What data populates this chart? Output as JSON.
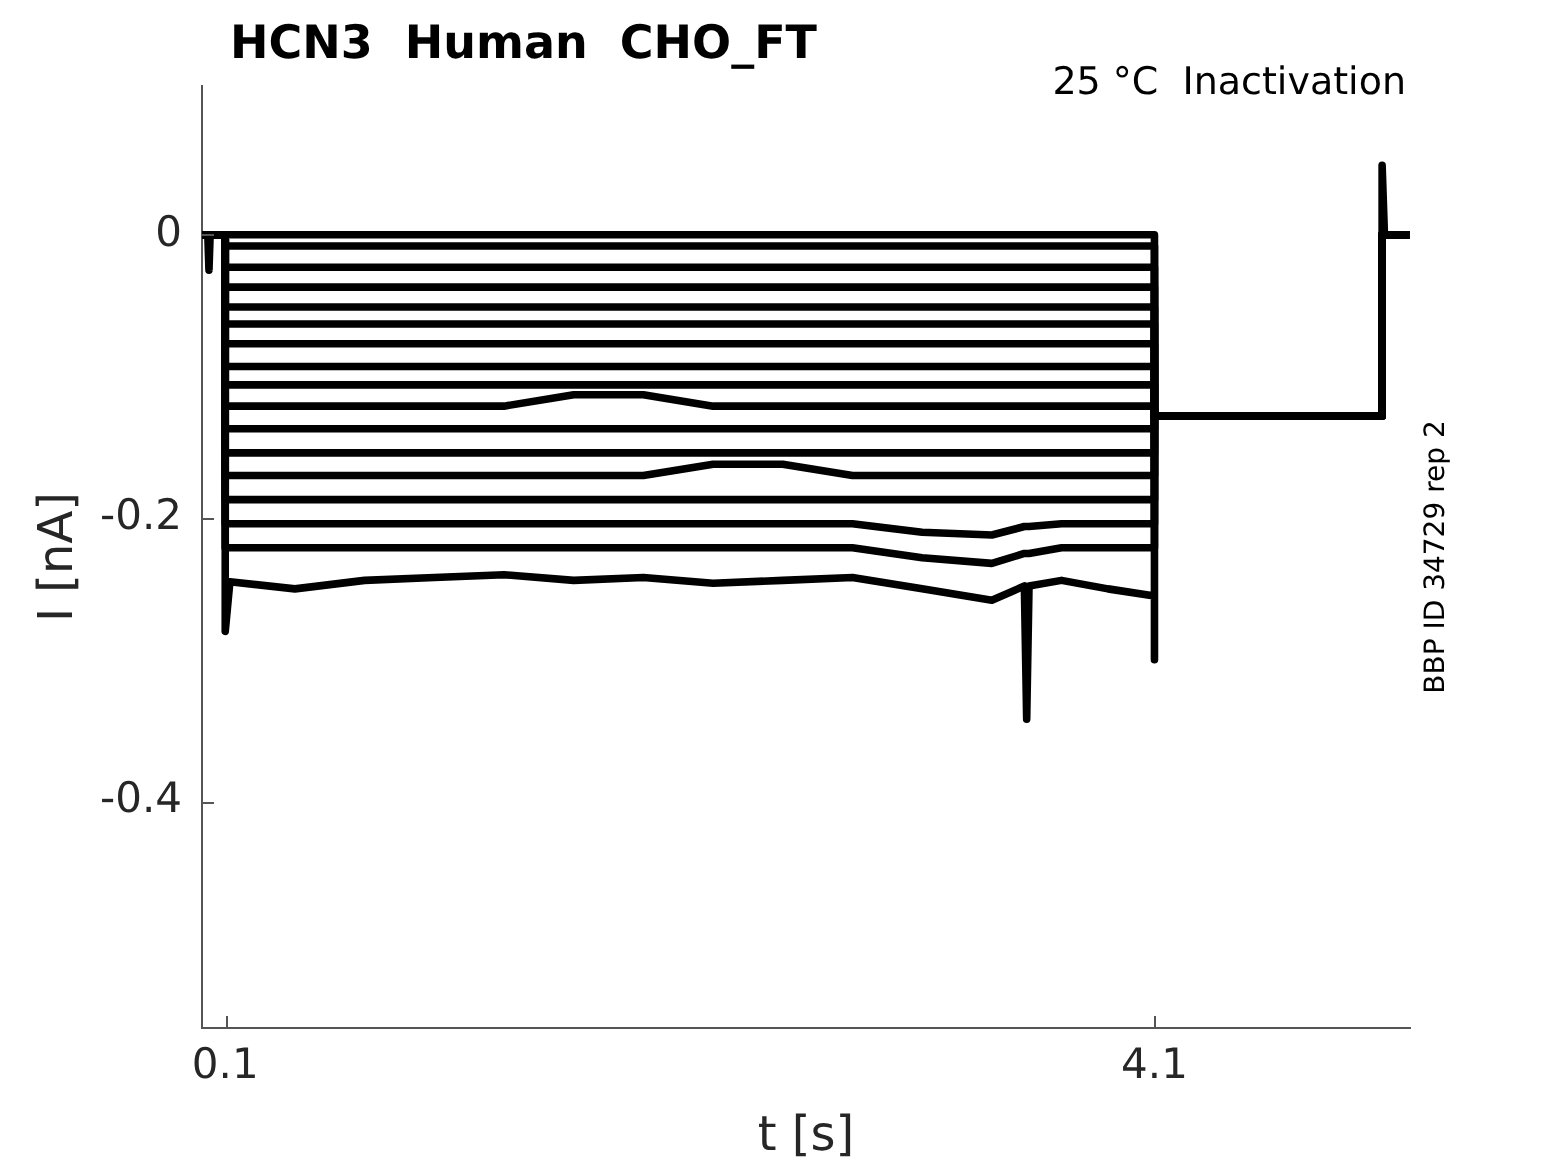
{
  "chart_data": {
    "type": "line",
    "title": "HCN3  Human  CHO_FT",
    "subtitle": "25 °C  Inactivation",
    "xlabel": "t [s]",
    "ylabel": "I [nA]",
    "annotations": [
      "BBP ID 34729 rep 2"
    ],
    "x": [
      0,
      0.025,
      0.03,
      0.035,
      0.1,
      0.1,
      0.12,
      0.4,
      0.7,
      1,
      1.3,
      1.6,
      1.9,
      2.2,
      2.5,
      2.8,
      3.1,
      3.4,
      3.54,
      3.55,
      3.56,
      3.7,
      3.9,
      4.1,
      4.1,
      4.1,
      4.5,
      5.08,
      5.08,
      5.09,
      5.2
    ],
    "series": [
      {
        "color": "#000000",
        "values": [
          0,
          0,
          -0.025,
          0,
          0,
          0,
          0,
          0,
          0,
          0,
          0,
          0,
          0,
          0,
          0,
          0,
          0,
          0,
          0,
          0,
          0,
          0,
          0,
          0,
          0,
          -0.128,
          -0.128,
          -0.128,
          0.049,
          0,
          0
        ]
      },
      {
        "color": "#000000",
        "values": [
          0,
          0,
          0,
          0,
          0,
          -0.008,
          -0.008,
          -0.008,
          -0.008,
          -0.008,
          -0.008,
          -0.008,
          -0.008,
          -0.008,
          -0.008,
          -0.008,
          -0.008,
          -0.008,
          -0.008,
          -0.008,
          -0.008,
          -0.008,
          -0.008,
          -0.008,
          -0.008,
          -0.128,
          -0.128,
          -0.128,
          0,
          0,
          0
        ]
      },
      {
        "color": "#000000",
        "values": [
          0,
          0,
          0,
          0,
          0,
          -0.023,
          -0.023,
          -0.023,
          -0.023,
          -0.023,
          -0.023,
          -0.023,
          -0.023,
          -0.023,
          -0.023,
          -0.023,
          -0.023,
          -0.023,
          -0.023,
          -0.023,
          -0.023,
          -0.023,
          -0.023,
          -0.023,
          -0.023,
          -0.128,
          -0.128,
          -0.128,
          0,
          0,
          0
        ]
      },
      {
        "color": "#000000",
        "values": [
          0,
          0,
          0,
          0,
          0,
          -0.037,
          -0.037,
          -0.037,
          -0.037,
          -0.037,
          -0.037,
          -0.037,
          -0.037,
          -0.037,
          -0.037,
          -0.037,
          -0.037,
          -0.037,
          -0.037,
          -0.037,
          -0.037,
          -0.037,
          -0.037,
          -0.037,
          -0.037,
          -0.128,
          -0.128,
          -0.128,
          0,
          0,
          0
        ]
      },
      {
        "color": "#000000",
        "values": [
          0,
          0,
          0,
          0,
          0,
          -0.051,
          -0.051,
          -0.051,
          -0.051,
          -0.051,
          -0.051,
          -0.051,
          -0.051,
          -0.051,
          -0.051,
          -0.051,
          -0.051,
          -0.051,
          -0.051,
          -0.051,
          -0.051,
          -0.051,
          -0.051,
          -0.051,
          -0.051,
          -0.128,
          -0.128,
          -0.128,
          0,
          0,
          0
        ]
      },
      {
        "color": "#000000",
        "values": [
          0,
          0,
          0,
          0,
          0,
          -0.063,
          -0.063,
          -0.063,
          -0.063,
          -0.063,
          -0.063,
          -0.063,
          -0.063,
          -0.063,
          -0.063,
          -0.063,
          -0.063,
          -0.063,
          -0.063,
          -0.063,
          -0.063,
          -0.063,
          -0.063,
          -0.063,
          -0.063,
          -0.128,
          -0.128,
          -0.128,
          0,
          0,
          0
        ]
      },
      {
        "color": "#000000",
        "values": [
          0,
          0,
          0,
          0,
          0,
          -0.077,
          -0.077,
          -0.077,
          -0.077,
          -0.077,
          -0.077,
          -0.077,
          -0.077,
          -0.077,
          -0.077,
          -0.077,
          -0.077,
          -0.077,
          -0.077,
          -0.077,
          -0.077,
          -0.077,
          -0.077,
          -0.077,
          -0.077,
          -0.128,
          -0.128,
          -0.128,
          0,
          0,
          0
        ]
      },
      {
        "color": "#000000",
        "values": [
          0,
          0,
          0,
          0,
          0,
          -0.093,
          -0.093,
          -0.093,
          -0.093,
          -0.093,
          -0.093,
          -0.093,
          -0.093,
          -0.093,
          -0.093,
          -0.093,
          -0.093,
          -0.093,
          -0.093,
          -0.093,
          -0.093,
          -0.093,
          -0.093,
          -0.093,
          -0.093,
          -0.128,
          -0.128,
          -0.128,
          0,
          0,
          0
        ]
      },
      {
        "color": "#000000",
        "values": [
          0,
          0,
          0,
          0,
          0,
          -0.106,
          -0.106,
          -0.106,
          -0.106,
          -0.106,
          -0.106,
          -0.106,
          -0.106,
          -0.106,
          -0.106,
          -0.106,
          -0.106,
          -0.106,
          -0.106,
          -0.106,
          -0.106,
          -0.106,
          -0.106,
          -0.106,
          -0.106,
          -0.128,
          -0.128,
          -0.128,
          0,
          0,
          0
        ]
      },
      {
        "color": "#000000",
        "values": [
          0,
          0,
          0,
          0,
          0,
          -0.121,
          -0.121,
          -0.121,
          -0.121,
          -0.121,
          -0.121,
          -0.113,
          -0.113,
          -0.121,
          -0.121,
          -0.121,
          -0.121,
          -0.121,
          -0.121,
          -0.121,
          -0.121,
          -0.121,
          -0.121,
          -0.121,
          -0.121,
          -0.128,
          -0.128,
          -0.128,
          0,
          0,
          0
        ]
      },
      {
        "color": "#000000",
        "values": [
          0,
          0,
          0,
          0,
          0,
          -0.137,
          -0.137,
          -0.137,
          -0.137,
          -0.137,
          -0.137,
          -0.137,
          -0.137,
          -0.137,
          -0.137,
          -0.137,
          -0.137,
          -0.137,
          -0.137,
          -0.137,
          -0.137,
          -0.137,
          -0.137,
          -0.137,
          -0.137,
          -0.128,
          -0.128,
          -0.128,
          0,
          0,
          0
        ]
      },
      {
        "color": "#000000",
        "values": [
          0,
          0,
          0,
          0,
          0,
          -0.154,
          -0.154,
          -0.154,
          -0.154,
          -0.154,
          -0.154,
          -0.154,
          -0.154,
          -0.154,
          -0.154,
          -0.154,
          -0.154,
          -0.154,
          -0.154,
          -0.154,
          -0.154,
          -0.154,
          -0.154,
          -0.154,
          -0.154,
          -0.128,
          -0.128,
          -0.128,
          0,
          0,
          0
        ]
      },
      {
        "color": "#000000",
        "values": [
          0,
          0,
          0,
          0,
          0,
          -0.17,
          -0.17,
          -0.17,
          -0.17,
          -0.17,
          -0.17,
          -0.17,
          -0.17,
          -0.162,
          -0.162,
          -0.17,
          -0.17,
          -0.17,
          -0.17,
          -0.17,
          -0.17,
          -0.17,
          -0.17,
          -0.17,
          -0.17,
          -0.128,
          -0.128,
          -0.128,
          0,
          0,
          0
        ]
      },
      {
        "color": "#000000",
        "values": [
          0,
          0,
          0,
          0,
          0,
          -0.187,
          -0.187,
          -0.187,
          -0.187,
          -0.187,
          -0.187,
          -0.187,
          -0.187,
          -0.187,
          -0.187,
          -0.187,
          -0.187,
          -0.187,
          -0.187,
          -0.187,
          -0.187,
          -0.187,
          -0.187,
          -0.187,
          -0.187,
          -0.128,
          -0.128,
          -0.128,
          0,
          0,
          0
        ]
      },
      {
        "color": "#000000",
        "values": [
          0,
          0,
          0,
          0,
          0,
          -0.204,
          -0.204,
          -0.204,
          -0.204,
          -0.204,
          -0.204,
          -0.204,
          -0.204,
          -0.204,
          -0.204,
          -0.204,
          -0.21,
          -0.212,
          -0.206,
          -0.206,
          -0.206,
          -0.204,
          -0.204,
          -0.204,
          -0.204,
          -0.128,
          -0.128,
          -0.128,
          0,
          0,
          0
        ]
      },
      {
        "color": "#000000",
        "values": [
          0,
          0,
          0,
          0,
          0,
          -0.221,
          -0.221,
          -0.221,
          -0.221,
          -0.221,
          -0.221,
          -0.221,
          -0.221,
          -0.221,
          -0.221,
          -0.221,
          -0.228,
          -0.232,
          -0.225,
          -0.225,
          -0.225,
          -0.221,
          -0.221,
          -0.221,
          -0.221,
          -0.128,
          -0.128,
          -0.128,
          0,
          0,
          0
        ]
      },
      {
        "color": "#000000",
        "values": [
          0,
          0,
          0,
          0,
          0,
          -0.28,
          -0.245,
          -0.25,
          -0.244,
          -0.242,
          -0.24,
          -0.244,
          -0.242,
          -0.246,
          -0.244,
          -0.242,
          -0.25,
          -0.258,
          -0.248,
          -0.342,
          -0.248,
          -0.244,
          -0.25,
          -0.255,
          -0.3,
          -0.128,
          -0.128,
          -0.128,
          0,
          0,
          0
        ]
      }
    ],
    "xlim": [
      0,
      5.2
    ],
    "ylim": [
      -0.56,
      0.105
    ],
    "xticks": [
      0.1,
      4.1
    ],
    "yticks": [
      -0.4,
      -0.2,
      0
    ]
  }
}
